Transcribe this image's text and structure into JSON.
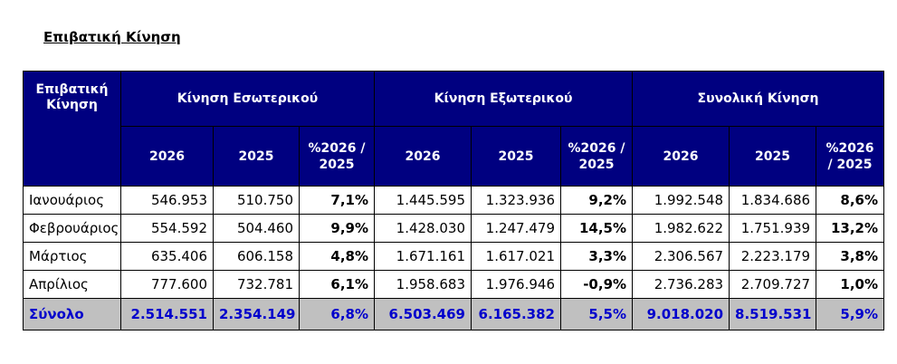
{
  "title": "Επιβατική Κίνηση",
  "table": {
    "corner": "Επιβατική Κίνηση",
    "groups": [
      "Κίνηση Εσωτερικού",
      "Κίνηση Εξωτερικού",
      "Συνολική Κίνηση"
    ],
    "subheaders": [
      "2026",
      "2025",
      "%2026 / 2025"
    ],
    "rows": [
      {
        "month": "Ιανουάριος",
        "cells": [
          "546.953",
          "510.750",
          "7,1%",
          "1.445.595",
          "1.323.936",
          "9,2%",
          "1.992.548",
          "1.834.686",
          "8,6%"
        ]
      },
      {
        "month": "Φεβρουάριος",
        "cells": [
          "554.592",
          "504.460",
          "9,9%",
          "1.428.030",
          "1.247.479",
          "14,5%",
          "1.982.622",
          "1.751.939",
          "13,2%"
        ]
      },
      {
        "month": "Μάρτιος",
        "cells": [
          "635.406",
          "606.158",
          "4,8%",
          "1.671.161",
          "1.617.021",
          "3,3%",
          "2.306.567",
          "2.223.179",
          "3,8%"
        ]
      },
      {
        "month": "Απρίλιος",
        "cells": [
          "777.600",
          "732.781",
          "6,1%",
          "1.958.683",
          "1.976.946",
          "-0,9%",
          "2.736.283",
          "2.709.727",
          "1,0%"
        ]
      }
    ],
    "total": {
      "label": "Σύνολο",
      "cells": [
        "2.514.551",
        "2.354.149",
        "6,8%",
        "6.503.469",
        "6.165.382",
        "5,5%",
        "9.018.020",
        "8.519.531",
        "5,9%"
      ]
    },
    "colors": {
      "header_bg": "#000080",
      "header_text": "#ffffff",
      "total_bg": "#c0c0c0",
      "total_text": "#0000cc"
    }
  }
}
